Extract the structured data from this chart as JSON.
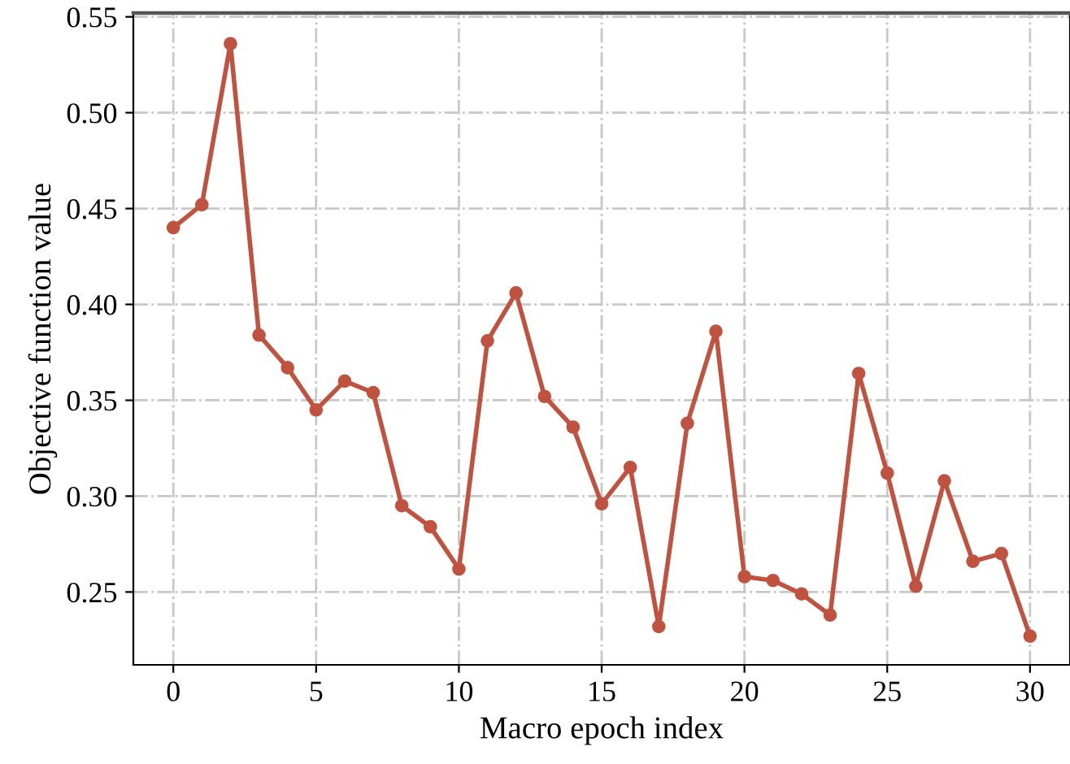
{
  "chart_data": {
    "type": "line",
    "xlabel": "Macro epoch index",
    "ylabel": "Objective function value",
    "x": [
      0,
      1,
      2,
      3,
      4,
      5,
      6,
      7,
      8,
      9,
      10,
      11,
      12,
      13,
      14,
      15,
      16,
      17,
      18,
      19,
      20,
      21,
      22,
      23,
      24,
      25,
      26,
      27,
      28,
      29,
      30
    ],
    "series": [
      {
        "color": "#c0533f",
        "values": [
          0.44,
          0.452,
          0.536,
          0.384,
          0.367,
          0.345,
          0.36,
          0.354,
          0.295,
          0.284,
          0.262,
          0.381,
          0.406,
          0.352,
          0.336,
          0.296,
          0.315,
          0.232,
          0.338,
          0.386,
          0.258,
          0.256,
          0.249,
          0.238,
          0.364,
          0.312,
          0.253,
          0.308,
          0.266,
          0.27,
          0.227
        ]
      }
    ],
    "xlim": [
      -1.4,
      31.4
    ],
    "ylim": [
      0.212,
      0.552
    ],
    "xticks": [
      0,
      5,
      10,
      15,
      20,
      25,
      30
    ],
    "yticks": [
      {
        "value": 0.25,
        "label": "0.25"
      },
      {
        "value": 0.3,
        "label": "0.30"
      },
      {
        "value": 0.35,
        "label": "0.35"
      },
      {
        "value": 0.4,
        "label": "0.40"
      },
      {
        "value": 0.45,
        "label": "0.45"
      },
      {
        "value": 0.5,
        "label": "0.50"
      },
      {
        "value": 0.55,
        "label": "0.55"
      }
    ],
    "grid": true,
    "marker": "circle",
    "line_style": "solid"
  }
}
